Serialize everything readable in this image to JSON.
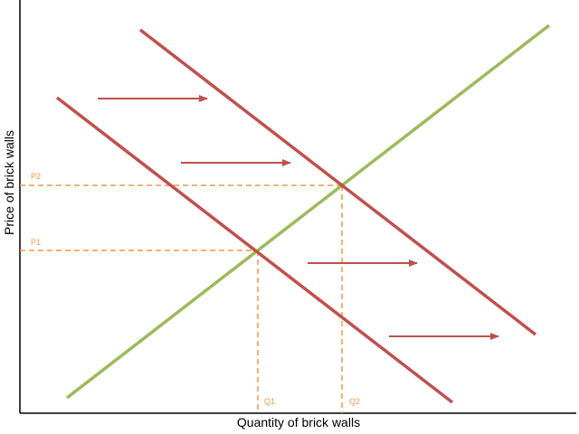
{
  "axes": {
    "x_label": "Quantity of brick walls",
    "y_label": "Price of brick walls"
  },
  "equilibrium": {
    "p1": "P1",
    "p2": "P2",
    "q1": "Q1",
    "q2": "Q2"
  },
  "colors": {
    "axis": "#000000",
    "supply": "#9bbb59",
    "demand": "#c0504d",
    "guide": "#f79646",
    "arrow": "#c0504d"
  }
}
